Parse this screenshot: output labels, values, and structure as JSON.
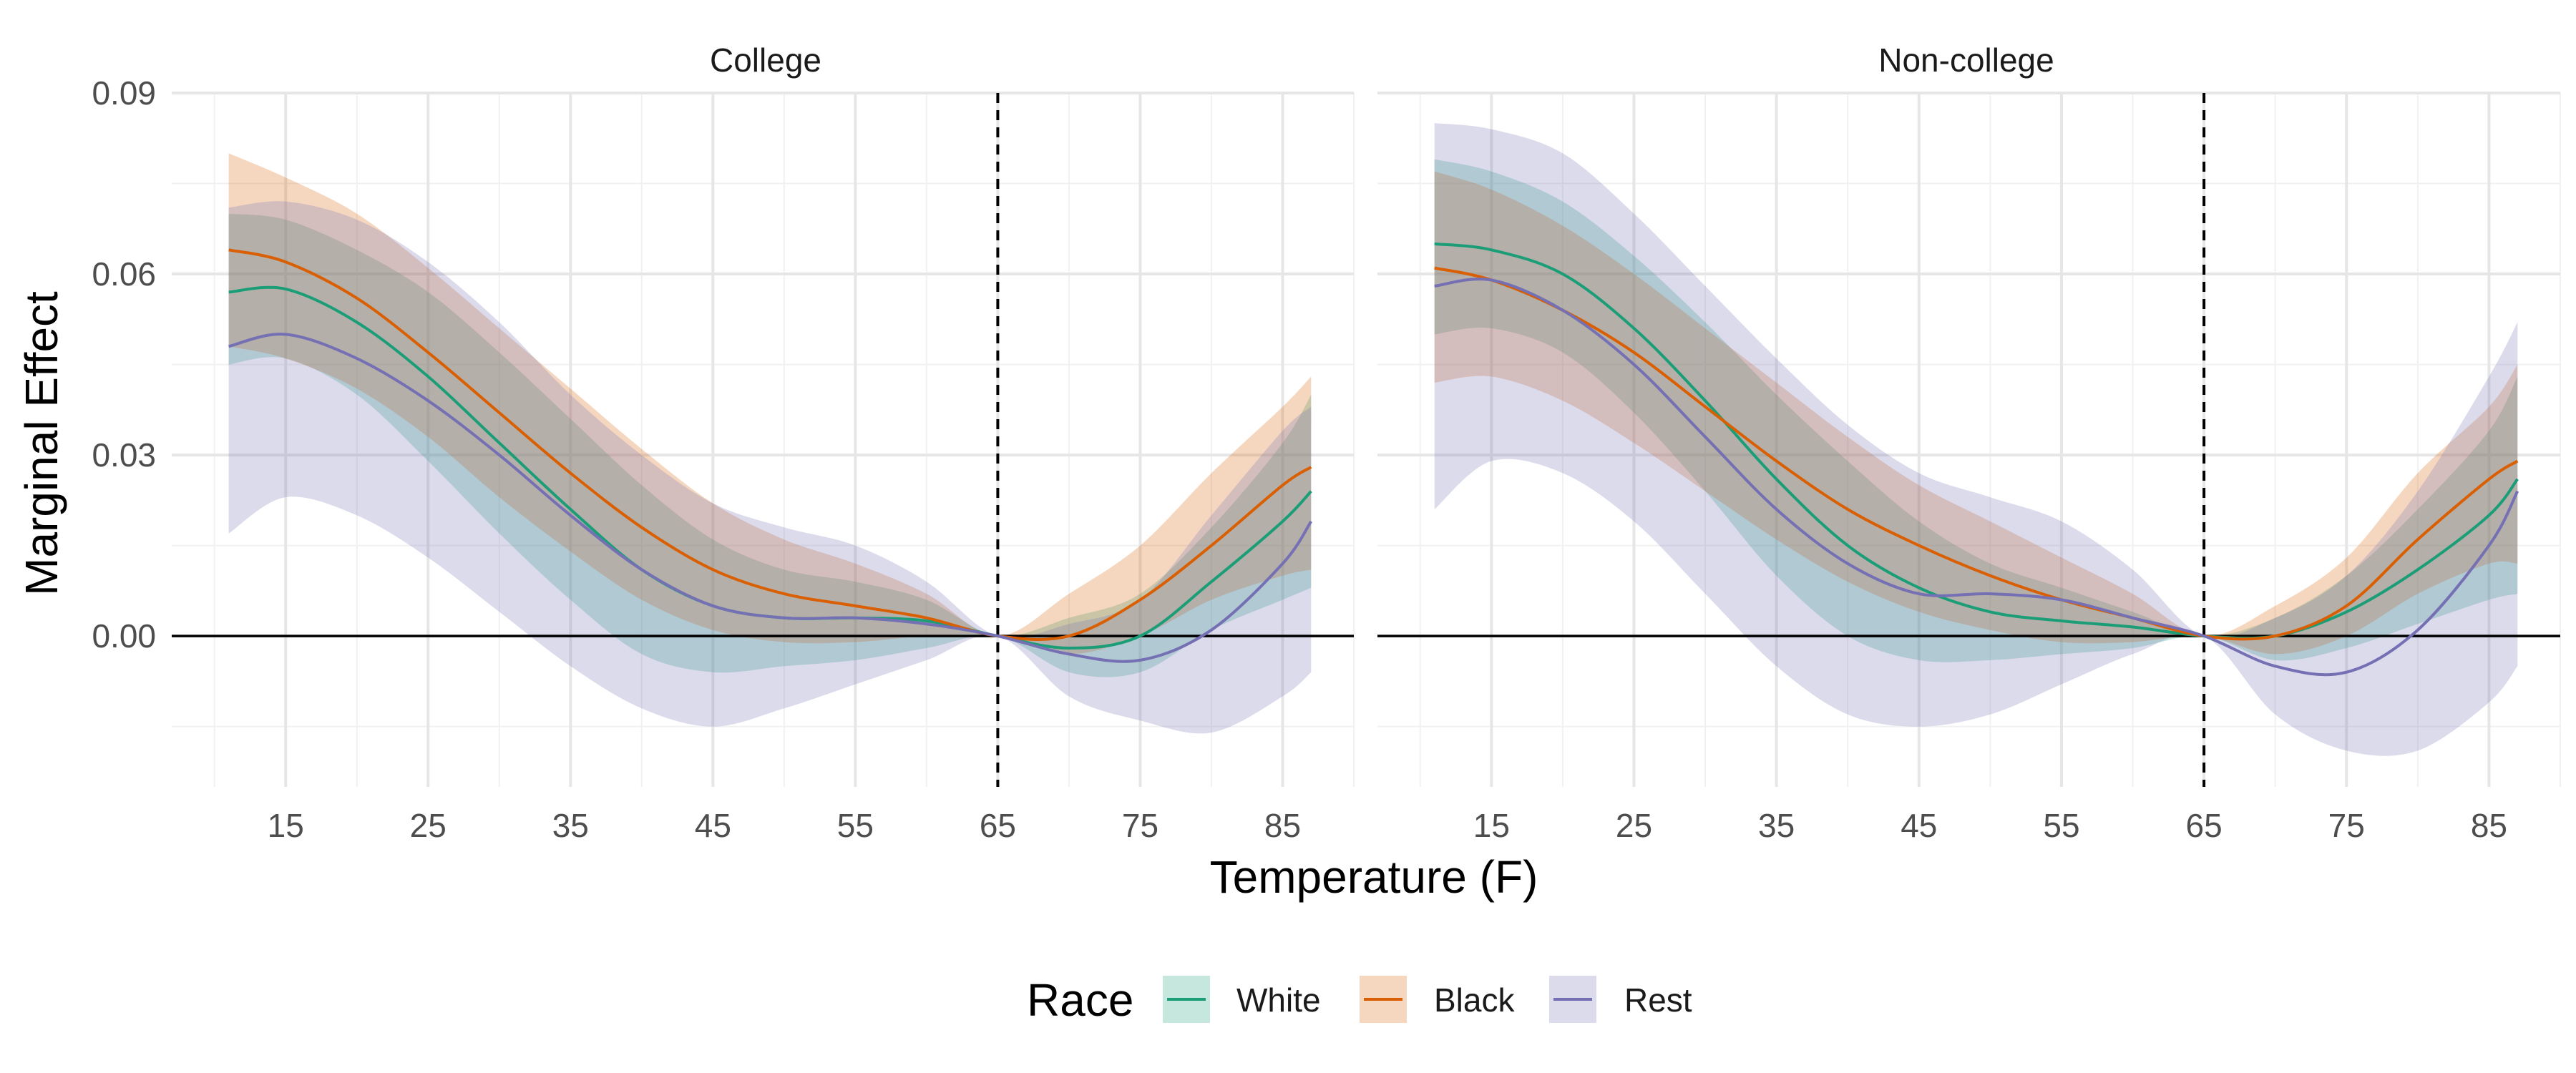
{
  "chart_data": {
    "type": "line",
    "facet_labels": [
      "College",
      "Non-college"
    ],
    "xlabel": "Temperature (F)",
    "ylabel": "Marginal Effect",
    "xlim": [
      7,
      90
    ],
    "ylim": [
      -0.025,
      0.09
    ],
    "x_ticks": [
      15,
      25,
      35,
      45,
      55,
      65,
      75,
      85
    ],
    "x_tick_labels": [
      "15",
      "25",
      "35",
      "45",
      "55",
      "65",
      "75",
      "85"
    ],
    "y_ticks": [
      0,
      0.03,
      0.06,
      0.09
    ],
    "y_tick_labels": [
      "0.00",
      "0.03",
      "0.06",
      "0.09"
    ],
    "reference_vline": 65,
    "reference_hline": 0,
    "grid": true,
    "legend": {
      "title": "Race",
      "position": "bottom",
      "entries": [
        {
          "name": "White",
          "color": "#1b9e77"
        },
        {
          "name": "Black",
          "color": "#d95f02"
        },
        {
          "name": "Rest",
          "color": "#7570b3"
        }
      ]
    },
    "x": [
      11,
      15,
      20,
      25,
      30,
      35,
      40,
      45,
      50,
      55,
      60,
      65,
      70,
      75,
      80,
      85,
      87
    ],
    "panels": [
      {
        "name": "College",
        "series": [
          {
            "name": "White",
            "color": "#1b9e77",
            "values": [
              0.057,
              0.0575,
              0.052,
              0.043,
              0.032,
              0.021,
              0.011,
              0.005,
              0.003,
              0.003,
              0.0025,
              0,
              -0.002,
              0.0,
              0.009,
              0.019,
              0.024
            ],
            "lower": [
              0.045,
              0.046,
              0.04,
              0.029,
              0.017,
              0.006,
              -0.003,
              -0.006,
              -0.005,
              -0.004,
              -0.002,
              0,
              -0.006,
              -0.006,
              0.001,
              0.006,
              0.008
            ],
            "upper": [
              0.07,
              0.069,
              0.064,
              0.057,
              0.047,
              0.036,
              0.025,
              0.016,
              0.011,
              0.009,
              0.006,
              0,
              0.003,
              0.007,
              0.018,
              0.032,
              0.04
            ]
          },
          {
            "name": "Black",
            "color": "#d95f02",
            "values": [
              0.064,
              0.062,
              0.056,
              0.047,
              0.037,
              0.027,
              0.018,
              0.011,
              0.007,
              0.005,
              0.003,
              0,
              0.0,
              0.006,
              0.015,
              0.025,
              0.028
            ],
            "lower": [
              0.048,
              0.046,
              0.041,
              0.033,
              0.023,
              0.014,
              0.006,
              0.001,
              -0.001,
              -0.001,
              0.0,
              0,
              -0.003,
              0.0,
              0.006,
              0.01,
              0.011
            ],
            "upper": [
              0.08,
              0.076,
              0.07,
              0.061,
              0.051,
              0.041,
              0.031,
              0.022,
              0.016,
              0.012,
              0.007,
              0,
              0.007,
              0.015,
              0.027,
              0.038,
              0.043
            ]
          },
          {
            "name": "Rest",
            "color": "#7570b3",
            "values": [
              0.048,
              0.05,
              0.046,
              0.039,
              0.03,
              0.02,
              0.011,
              0.005,
              0.003,
              0.003,
              0.002,
              0,
              -0.003,
              -0.004,
              0.001,
              0.012,
              0.019
            ],
            "lower": [
              0.017,
              0.023,
              0.02,
              0.013,
              0.004,
              -0.005,
              -0.012,
              -0.015,
              -0.012,
              -0.008,
              -0.004,
              0,
              -0.01,
              -0.014,
              -0.016,
              -0.01,
              -0.006
            ],
            "upper": [
              0.071,
              0.072,
              0.069,
              0.062,
              0.052,
              0.04,
              0.03,
              0.022,
              0.018,
              0.015,
              0.009,
              0,
              0.002,
              0.006,
              0.02,
              0.034,
              0.038
            ]
          }
        ]
      },
      {
        "name": "Non-college",
        "series": [
          {
            "name": "White",
            "color": "#1b9e77",
            "values": [
              0.065,
              0.064,
              0.06,
              0.051,
              0.039,
              0.026,
              0.015,
              0.008,
              0.004,
              0.0025,
              0.0015,
              0,
              0.0,
              0.004,
              0.011,
              0.02,
              0.026
            ],
            "lower": [
              0.05,
              0.051,
              0.047,
              0.037,
              0.024,
              0.01,
              0.0,
              -0.004,
              -0.004,
              -0.003,
              -0.002,
              0,
              -0.004,
              -0.002,
              0.002,
              0.006,
              0.007
            ],
            "upper": [
              0.079,
              0.077,
              0.072,
              0.063,
              0.052,
              0.04,
              0.029,
              0.019,
              0.012,
              0.008,
              0.004,
              0,
              0.003,
              0.01,
              0.021,
              0.034,
              0.043
            ]
          },
          {
            "name": "Black",
            "color": "#d95f02",
            "values": [
              0.061,
              0.059,
              0.054,
              0.047,
              0.038,
              0.029,
              0.021,
              0.015,
              0.01,
              0.006,
              0.003,
              0,
              0.0,
              0.005,
              0.016,
              0.026,
              0.029
            ],
            "lower": [
              0.042,
              0.043,
              0.039,
              0.032,
              0.024,
              0.016,
              0.009,
              0.004,
              0.001,
              -0.001,
              -0.001,
              0,
              -0.003,
              0.0,
              0.007,
              0.012,
              0.012
            ],
            "upper": [
              0.077,
              0.074,
              0.068,
              0.06,
              0.051,
              0.042,
              0.033,
              0.025,
              0.019,
              0.013,
              0.007,
              0,
              0.005,
              0.013,
              0.027,
              0.038,
              0.045
            ]
          },
          {
            "name": "Rest",
            "color": "#7570b3",
            "values": [
              0.058,
              0.059,
              0.054,
              0.045,
              0.033,
              0.021,
              0.012,
              0.007,
              0.007,
              0.006,
              0.003,
              0,
              -0.005,
              -0.006,
              0.001,
              0.015,
              0.024
            ],
            "lower": [
              0.021,
              0.029,
              0.027,
              0.019,
              0.007,
              -0.005,
              -0.013,
              -0.015,
              -0.013,
              -0.008,
              -0.003,
              0,
              -0.013,
              -0.019,
              -0.019,
              -0.011,
              -0.005
            ],
            "upper": [
              0.085,
              0.084,
              0.08,
              0.07,
              0.058,
              0.046,
              0.035,
              0.027,
              0.023,
              0.019,
              0.011,
              0,
              0.003,
              0.01,
              0.024,
              0.043,
              0.052
            ]
          }
        ]
      }
    ]
  }
}
